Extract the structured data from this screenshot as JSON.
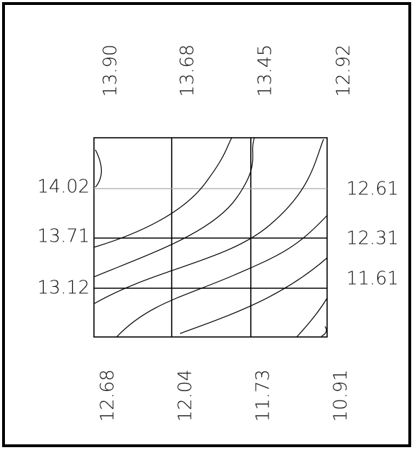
{
  "top_labels": [
    "13.90",
    "13.68",
    "13.45",
    "12.92"
  ],
  "left_labels": [
    "14.02",
    "13.71",
    "13.12"
  ],
  "right_labels": [
    "12.61",
    "12.31",
    "11.61"
  ],
  "bottom_labels": [
    "12.68",
    "12.04",
    "11.73",
    "10.91"
  ]
}
